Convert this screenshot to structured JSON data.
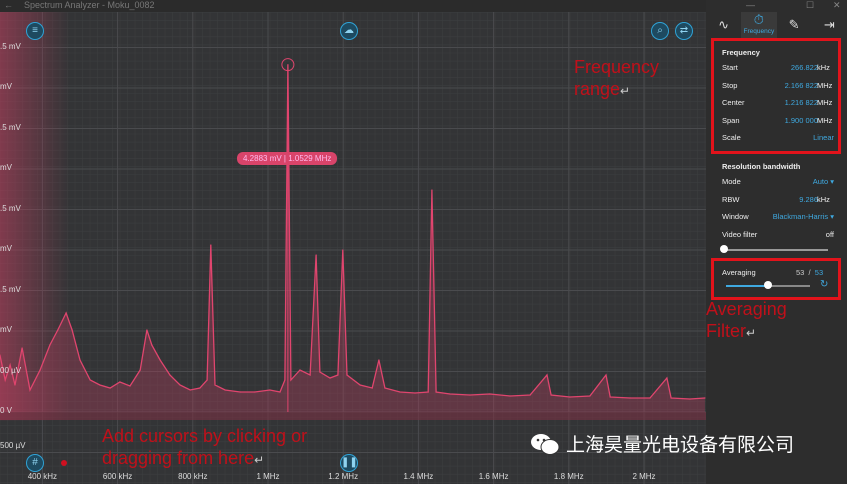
{
  "window": {
    "title": "Spectrum Analyzer - Moku_0082",
    "back_icon": "arrow-left-icon",
    "minimize": "—",
    "maximize": "☐",
    "close": "✕"
  },
  "plot": {
    "y_labels": [
      ".5 mV",
      "mV",
      ".5 mV",
      "mV",
      ".5 mV",
      "mV",
      ".5 mV",
      "mV",
      "00 µV",
      "0 V",
      "500 µV"
    ],
    "x_labels": [
      "400 kHz",
      "600 kHz",
      "800 kHz",
      "1 MHz",
      "1.2 MHz",
      "1.4 MHz",
      "1.6 MHz",
      "1.8 MHz",
      "2 MHz"
    ],
    "marker_readout": "4.2883 mV | 1.0529 MHz",
    "trace_color": "#e0456e",
    "buttons": {
      "menu": "menu-icon",
      "cloud": "cloud-upload-icon",
      "zoom": "zoom-icon",
      "swap": "swap-icon",
      "cursor": "cursor-icon",
      "pause": "pause-icon"
    }
  },
  "chart_data": {
    "type": "line",
    "xlabel": "",
    "ylabel": "",
    "xunit": "kHz",
    "yunit": "mV",
    "xlim": [
      266.822,
      2166.822
    ],
    "ylim": [
      -0.5,
      4.5
    ],
    "x_ticks": [
      400,
      600,
      800,
      1000,
      1200,
      1400,
      1600,
      1800,
      2000
    ],
    "y_ticks": [
      -0.5,
      0,
      0.5,
      1,
      1.5,
      2,
      2.5,
      3,
      3.5,
      4,
      4.5
    ],
    "grid": true,
    "marker": {
      "x": 1052.9,
      "y": 4.2883
    },
    "x": [
      287,
      301,
      314,
      327,
      346,
      367,
      394,
      420,
      441,
      463,
      479,
      500,
      527,
      553,
      580,
      606,
      633,
      660,
      678,
      691,
      713,
      739,
      766,
      793,
      819,
      838,
      848,
      859,
      886,
      926,
      965,
      1005,
      1032,
      1045,
      1053,
      1061,
      1085,
      1112,
      1128,
      1138,
      1165,
      1186,
      1199,
      1210,
      1245,
      1277,
      1295,
      1311,
      1351,
      1391,
      1426,
      1436,
      1447,
      1484,
      1537,
      1590,
      1644,
      1697,
      1742,
      1753,
      1803,
      1856,
      1899,
      1910,
      1963,
      2016,
      2061,
      2072,
      2122,
      2162
    ],
    "y": [
      0.704,
      0.395,
      0.58,
      0.333,
      0.79,
      0.272,
      0.519,
      0.827,
      1.012,
      1.222,
      1.012,
      0.642,
      0.395,
      0.333,
      0.296,
      0.37,
      0.321,
      0.519,
      1.012,
      0.827,
      0.642,
      0.457,
      0.333,
      0.272,
      0.296,
      0.395,
      2.062,
      0.333,
      0.272,
      0.247,
      0.247,
      0.272,
      0.247,
      0.395,
      4.288,
      0.395,
      0.519,
      0.457,
      1.938,
      0.494,
      0.42,
      0.457,
      2.0,
      0.457,
      0.333,
      0.296,
      0.642,
      0.296,
      0.247,
      0.235,
      0.247,
      2.741,
      0.247,
      0.222,
      0.21,
      0.222,
      0.198,
      0.21,
      0.457,
      0.21,
      0.185,
      0.198,
      0.457,
      0.185,
      0.173,
      0.173,
      0.42,
      0.173,
      0.16,
      0.173
    ]
  },
  "annotations": {
    "freq_range": "Frequency range",
    "averaging": "Averaging Filter",
    "cursors_1": "Add cursors by clicking or",
    "cursors_2": "dragging from here",
    "return_mark": "↵"
  },
  "panel": {
    "tabs": [
      {
        "icon": "waveform-icon",
        "glyph": "∿"
      },
      {
        "icon": "frequency-icon",
        "glyph": "⏱",
        "label": "Frequency"
      },
      {
        "icon": "pencil-icon",
        "glyph": "✎"
      },
      {
        "icon": "export-icon",
        "glyph": "⇥"
      }
    ],
    "frequency": {
      "title": "Frequency",
      "start": {
        "label": "Start",
        "value": "266.822",
        "unit": "kHz"
      },
      "stop": {
        "label": "Stop",
        "value": "2.166 822",
        "unit": "MHz"
      },
      "center": {
        "label": "Center",
        "value": "1.216 822",
        "unit": "MHz"
      },
      "span": {
        "label": "Span",
        "value": "1.900 000",
        "unit": "MHz"
      },
      "scale": {
        "label": "Scale",
        "value": "Linear"
      }
    },
    "rbw": {
      "title": "Resolution bandwidth",
      "mode": {
        "label": "Mode",
        "value": "Auto ▾"
      },
      "rbw": {
        "label": "RBW",
        "value": "9.286",
        "unit": "kHz"
      },
      "window": {
        "label": "Window",
        "value": "Blackman-Harris ▾"
      },
      "video": {
        "label": "Video filter",
        "value": "off",
        "slider": 0
      }
    },
    "averaging": {
      "label": "Averaging",
      "current": "53",
      "sep": "/",
      "total": "53",
      "slider": 0.5,
      "reset_icon": "refresh-icon"
    },
    "accent": "#3fa9e0",
    "highlight": "#e2131b"
  },
  "watermark": {
    "text": "上海昊量光电设备有限公司",
    "logo": "wechat-logo"
  }
}
